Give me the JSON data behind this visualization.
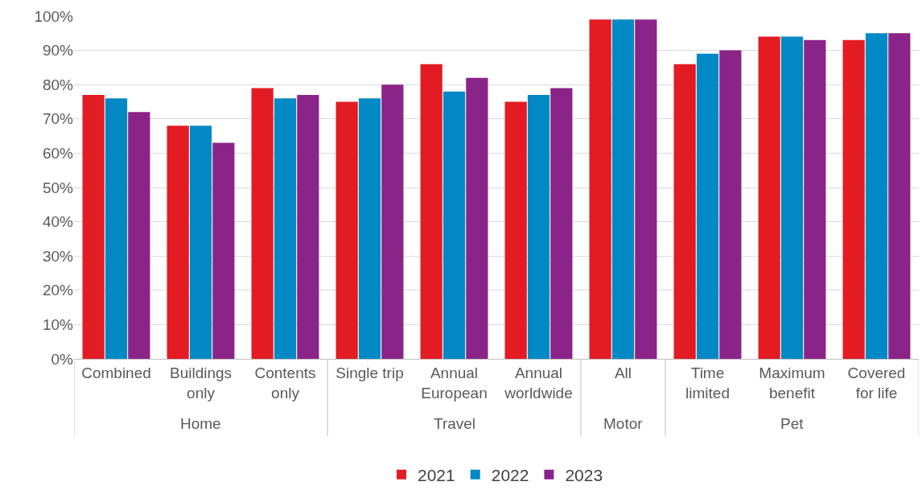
{
  "chart_data": {
    "type": "bar",
    "categories": [
      "Combined",
      "Buildings\nonly",
      "Contents\nonly",
      "Single trip",
      "Annual\nEuropean",
      "Annual\nworldwide",
      "All",
      "Time\nlimited",
      "Maximum\nbenefit",
      "Covered\nfor life"
    ],
    "series": [
      {
        "name": "2021",
        "color": "#e31b23",
        "values": [
          0.77,
          0.68,
          0.79,
          0.75,
          0.86,
          0.75,
          0.99,
          0.86,
          0.94,
          0.93
        ]
      },
      {
        "name": "2022",
        "color": "#0089c4",
        "values": [
          0.76,
          0.68,
          0.76,
          0.76,
          0.78,
          0.77,
          0.99,
          0.89,
          0.94,
          0.95
        ]
      },
      {
        "name": "2023",
        "color": "#8b2488",
        "values": [
          0.72,
          0.63,
          0.77,
          0.8,
          0.82,
          0.79,
          0.99,
          0.9,
          0.93,
          0.95
        ]
      }
    ],
    "ylim": [
      0,
      1
    ],
    "yticks": [
      {
        "value": 0,
        "label": "0%"
      },
      {
        "value": 0.1,
        "label": "10%"
      },
      {
        "value": 0.2,
        "label": "20%"
      },
      {
        "value": 0.3,
        "label": "30%"
      },
      {
        "value": 0.4,
        "label": "40%"
      },
      {
        "value": 0.5,
        "label": "50%"
      },
      {
        "value": 0.6,
        "label": "60%"
      },
      {
        "value": 0.7,
        "label": "70%"
      },
      {
        "value": 0.8,
        "label": "80%"
      },
      {
        "value": 0.9,
        "label": "90%"
      },
      {
        "value": 1,
        "label": "100%"
      }
    ],
    "annotations": [
      "Home",
      "Travel",
      "Motor",
      "Pet"
    ],
    "grid": "y",
    "legend": "bottom"
  }
}
